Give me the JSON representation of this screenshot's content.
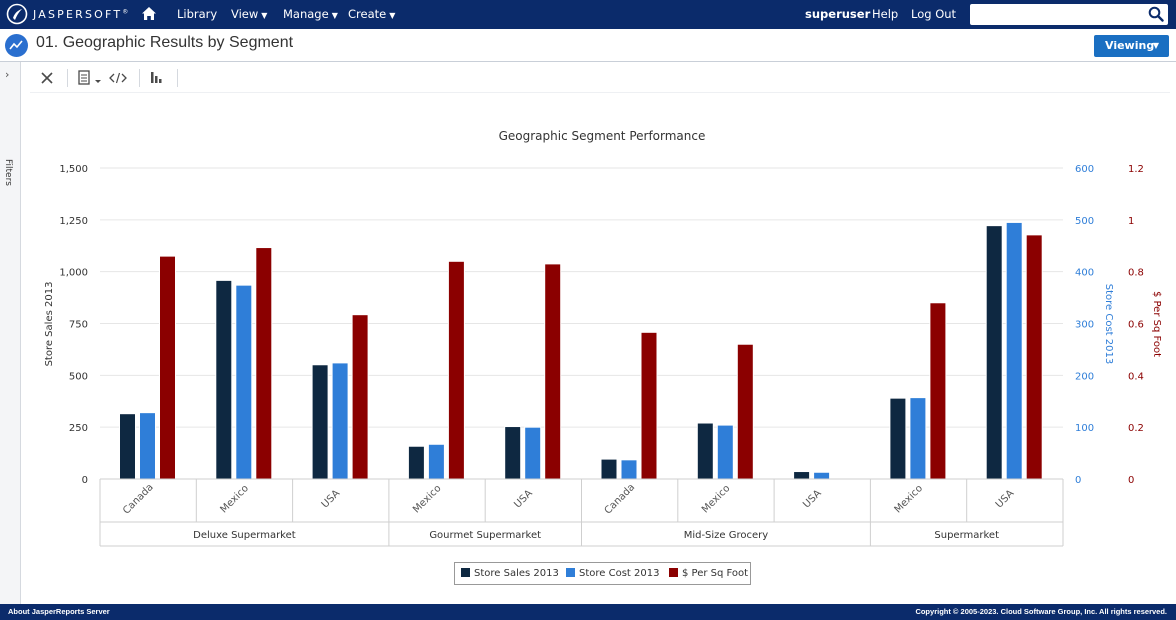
{
  "nav": {
    "logo_text": "JASPERSOFT",
    "logo_tm": "®",
    "library": "Library",
    "view": "View",
    "manage": "Manage",
    "create": "Create",
    "user": "superuser",
    "help": "Help",
    "logout": "Log Out",
    "search_value": ""
  },
  "titlebar": {
    "title": "01. Geographic Results by Segment",
    "viewing": "Viewing"
  },
  "filters": {
    "label": "Filters"
  },
  "footer": {
    "left": "About JasperReports Server",
    "right": "Copyright © 2005-2023. Cloud Software Group, Inc. All rights reserved."
  },
  "colors": {
    "nav_bg": "#0b2b6b",
    "accent": "#1a6fc2",
    "series_sales": "#0e2841",
    "series_cost": "#2f7ed8",
    "series_sqft": "#8b0000"
  },
  "chart_data": {
    "type": "bar",
    "title": "Geographic Segment Performance",
    "grid": true,
    "legend_position": "bottom-center",
    "groups": [
      {
        "name": "Deluxe Supermarket",
        "categories": [
          "Canada",
          "Mexico",
          "USA"
        ]
      },
      {
        "name": "Gourmet Supermarket",
        "categories": [
          "Mexico",
          "USA"
        ]
      },
      {
        "name": "Mid-Size Grocery",
        "categories": [
          "Canada",
          "Mexico",
          "USA"
        ]
      },
      {
        "name": "Supermarket",
        "categories": [
          "Mexico",
          "USA"
        ]
      }
    ],
    "categories": [
      "Canada",
      "Mexico",
      "USA",
      "Mexico",
      "USA",
      "Canada",
      "Mexico",
      "USA",
      "Mexico",
      "USA"
    ],
    "axes": [
      {
        "id": "sales",
        "title": "Store Sales 2013",
        "min": 0,
        "max": 1500,
        "ticks": [
          "0",
          "250",
          "500",
          "750",
          "1,000",
          "1,250",
          "1,500"
        ],
        "position": "left"
      },
      {
        "id": "cost",
        "title": "Store Cost 2013",
        "min": 0,
        "max": 600,
        "ticks": [
          "0",
          "100",
          "200",
          "300",
          "400",
          "500",
          "600"
        ],
        "position": "right"
      },
      {
        "id": "sqft",
        "title": "$ Per Sq Foot",
        "min": 0,
        "max": 1.2,
        "ticks": [
          "0",
          "0.2",
          "0.4",
          "0.6",
          "0.8",
          "1",
          "1.2"
        ],
        "position": "right"
      }
    ],
    "series": [
      {
        "name": "Store Sales 2013",
        "axis": "sales",
        "values": [
          315,
          958,
          551,
          158,
          253,
          96,
          270,
          36,
          390,
          1222
        ]
      },
      {
        "name": "Store Cost 2013",
        "axis": "cost",
        "values": [
          128,
          374,
          224,
          67,
          100,
          37,
          104,
          13,
          157,
          495
        ]
      },
      {
        "name": "$ Per Sq Foot",
        "axis": "sqft",
        "values": [
          0.86,
          0.893,
          0.634,
          0.84,
          0.83,
          0.566,
          0.52,
          0,
          0.68,
          0.942
        ]
      }
    ]
  }
}
